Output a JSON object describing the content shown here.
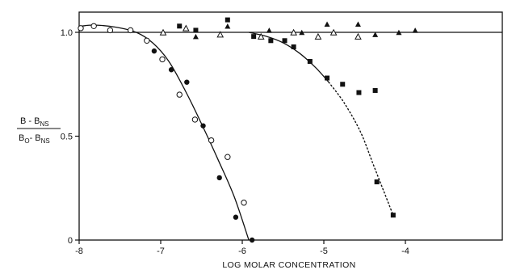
{
  "chart_data": {
    "type": "scatter",
    "title": "",
    "xlabel": "LOG MOLAR CONCENTRATION",
    "ylabel": {
      "num_main": "B - B",
      "num_sub": "NS",
      "den_main1": "B",
      "den_sub1": "O",
      "den_main2": "- B",
      "den_sub2": "NS"
    },
    "xlim": [
      -8,
      -3.85
    ],
    "ylim": [
      0,
      1.09
    ],
    "x_ticks": [
      -8,
      -7,
      -6,
      -5,
      -4
    ],
    "x_tick_labels": [
      "-8",
      "-7",
      "-6",
      "-5",
      "-4"
    ],
    "y_ticks": [
      0,
      0.5,
      1.0
    ],
    "y_tick_labels": [
      "0",
      "0.5",
      "1.0"
    ],
    "grid": false,
    "legend": "none",
    "reference_lines": [
      {
        "y": 1.0
      }
    ],
    "series": [
      {
        "marker": "open-circle",
        "points": [
          [
            -7.98,
            1.02
          ],
          [
            -7.82,
            1.03
          ],
          [
            -7.62,
            1.01
          ],
          [
            -7.37,
            1.01
          ],
          [
            -7.17,
            0.96
          ],
          [
            -6.98,
            0.87
          ],
          [
            -6.77,
            0.7
          ],
          [
            -6.58,
            0.58
          ],
          [
            -6.38,
            0.48
          ],
          [
            -6.18,
            0.4
          ],
          [
            -5.98,
            0.18
          ]
        ]
      },
      {
        "marker": "filled-circle",
        "points": [
          [
            -7.08,
            0.91
          ],
          [
            -6.87,
            0.82
          ],
          [
            -6.68,
            0.76
          ],
          [
            -6.48,
            0.55
          ],
          [
            -6.28,
            0.3
          ],
          [
            -6.08,
            0.11
          ],
          [
            -5.88,
            0.0
          ]
        ]
      },
      {
        "marker": "filled-square",
        "points": [
          [
            -6.77,
            1.03
          ],
          [
            -6.57,
            1.01
          ],
          [
            -6.18,
            1.06
          ],
          [
            -5.86,
            0.98
          ],
          [
            -5.65,
            0.96
          ],
          [
            -5.48,
            0.96
          ],
          [
            -5.37,
            0.93
          ],
          [
            -5.17,
            0.86
          ],
          [
            -4.96,
            0.78
          ],
          [
            -4.77,
            0.75
          ],
          [
            -4.57,
            0.71
          ],
          [
            -4.37,
            0.72
          ],
          [
            -4.35,
            0.28
          ],
          [
            -4.15,
            0.12
          ]
        ]
      },
      {
        "marker": "open-triangle",
        "points": [
          [
            -6.97,
            1.0
          ],
          [
            -6.69,
            1.02
          ],
          [
            -6.27,
            0.99
          ],
          [
            -5.77,
            0.98
          ],
          [
            -5.37,
            1.0
          ],
          [
            -5.07,
            0.98
          ],
          [
            -4.88,
            1.0
          ],
          [
            -4.58,
            0.98
          ]
        ]
      },
      {
        "marker": "filled-triangle",
        "points": [
          [
            -6.57,
            0.98
          ],
          [
            -6.18,
            1.03
          ],
          [
            -5.67,
            1.01
          ],
          [
            -5.27,
            1.0
          ],
          [
            -4.96,
            1.04
          ],
          [
            -4.58,
            1.04
          ],
          [
            -4.37,
            0.99
          ],
          [
            -4.08,
            1.0
          ],
          [
            -3.88,
            1.01
          ]
        ]
      }
    ],
    "curves": [
      {
        "style": "solid",
        "points": [
          [
            -7.97,
            1.03
          ],
          [
            -7.82,
            1.035
          ],
          [
            -7.55,
            1.025
          ],
          [
            -7.3,
            1.0
          ],
          [
            -7.1,
            0.95
          ],
          [
            -6.9,
            0.86
          ],
          [
            -6.7,
            0.72
          ],
          [
            -6.5,
            0.56
          ],
          [
            -6.3,
            0.39
          ],
          [
            -6.1,
            0.21
          ],
          [
            -5.92,
            0.0
          ]
        ]
      },
      {
        "style": "solid",
        "points": [
          [
            -5.92,
            1.0
          ],
          [
            -5.7,
            0.98
          ],
          [
            -5.5,
            0.95
          ],
          [
            -5.3,
            0.9
          ],
          [
            -5.1,
            0.83
          ],
          [
            -4.94,
            0.76
          ]
        ]
      },
      {
        "style": "dotted",
        "points": [
          [
            -4.94,
            0.76
          ],
          [
            -4.75,
            0.66
          ],
          [
            -4.55,
            0.52
          ],
          [
            -4.4,
            0.37
          ],
          [
            -4.27,
            0.24
          ],
          [
            -4.15,
            0.12
          ]
        ]
      }
    ]
  }
}
